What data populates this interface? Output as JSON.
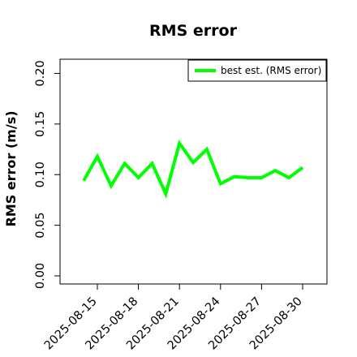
{
  "chart_data": {
    "type": "line",
    "title": "RMS error",
    "xlabel": "",
    "ylabel": "RMS error (m/s)",
    "ylim": [
      0.0,
      0.21
    ],
    "y_ticks": [
      "0.00",
      "0.05",
      "0.10",
      "0.15",
      "0.20"
    ],
    "x_tick_labels": [
      "2025-08-15",
      "2025-08-18",
      "2025-08-21",
      "2025-08-24",
      "2025-08-27",
      "2025-08-30"
    ],
    "highlighted_tick": "2025-08-21",
    "highlight_color": "#228B22",
    "x": [
      "2025-08-14",
      "2025-08-15",
      "2025-08-16",
      "2025-08-17",
      "2025-08-18",
      "2025-08-19",
      "2025-08-20",
      "2025-08-21",
      "2025-08-22",
      "2025-08-23",
      "2025-08-24",
      "2025-08-25",
      "2025-08-26",
      "2025-08-27",
      "2025-08-28",
      "2025-08-29",
      "2025-08-30"
    ],
    "series": [
      {
        "name": "best est. (RMS error)",
        "color": "#00FF00",
        "values": [
          0.094,
          0.118,
          0.089,
          0.111,
          0.097,
          0.111,
          0.081,
          0.131,
          0.112,
          0.125,
          0.091,
          0.098,
          0.097,
          0.097,
          0.104,
          0.097,
          0.107
        ]
      }
    ],
    "legend_position": "top-right",
    "grid": false
  }
}
